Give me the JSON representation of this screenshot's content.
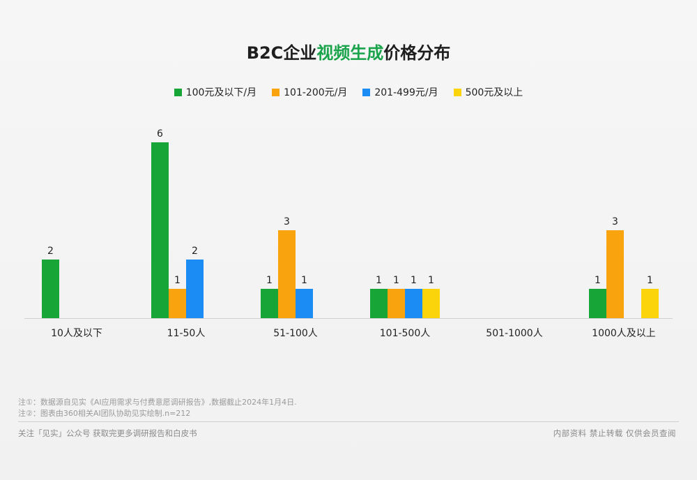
{
  "chart_data": {
    "type": "bar",
    "title": "B2C企业视频生成价格分布",
    "title_parts": {
      "before": "B2C企业",
      "highlight": "视频生成",
      "after": "价格分布"
    },
    "categories": [
      "10人及以下",
      "11-50人",
      "51-100人",
      "101-500人",
      "501-1000人",
      "1000人及以上"
    ],
    "series": [
      {
        "name": "100元及以下/月",
        "color": "#17a538",
        "values": [
          2,
          6,
          1,
          1,
          0,
          1
        ]
      },
      {
        "name": "101-200元/月",
        "color": "#f9a30f",
        "values": [
          0,
          1,
          3,
          1,
          0,
          3
        ]
      },
      {
        "name": "201-499元/月",
        "color": "#1a8cf3",
        "values": [
          0,
          2,
          1,
          1,
          0,
          0
        ]
      },
      {
        "name": "500元及以上",
        "color": "#fcd40b",
        "values": [
          0,
          0,
          0,
          1,
          0,
          1
        ]
      }
    ],
    "ylim": [
      0,
      6
    ],
    "grid": false,
    "legend_position": "top"
  },
  "notes": {
    "line1": "注①：数据源自见实《AI应用需求与付费意愿调研报告》,数据截止2024年1月4日.",
    "line2": "注②：图表由360相关AI团队协助见实绘制.n=212"
  },
  "footer": {
    "left": "关注「见实」公众号 获取完更多调研报告和白皮书",
    "right": "内部资料 禁止转载 仅供会员查阅"
  }
}
